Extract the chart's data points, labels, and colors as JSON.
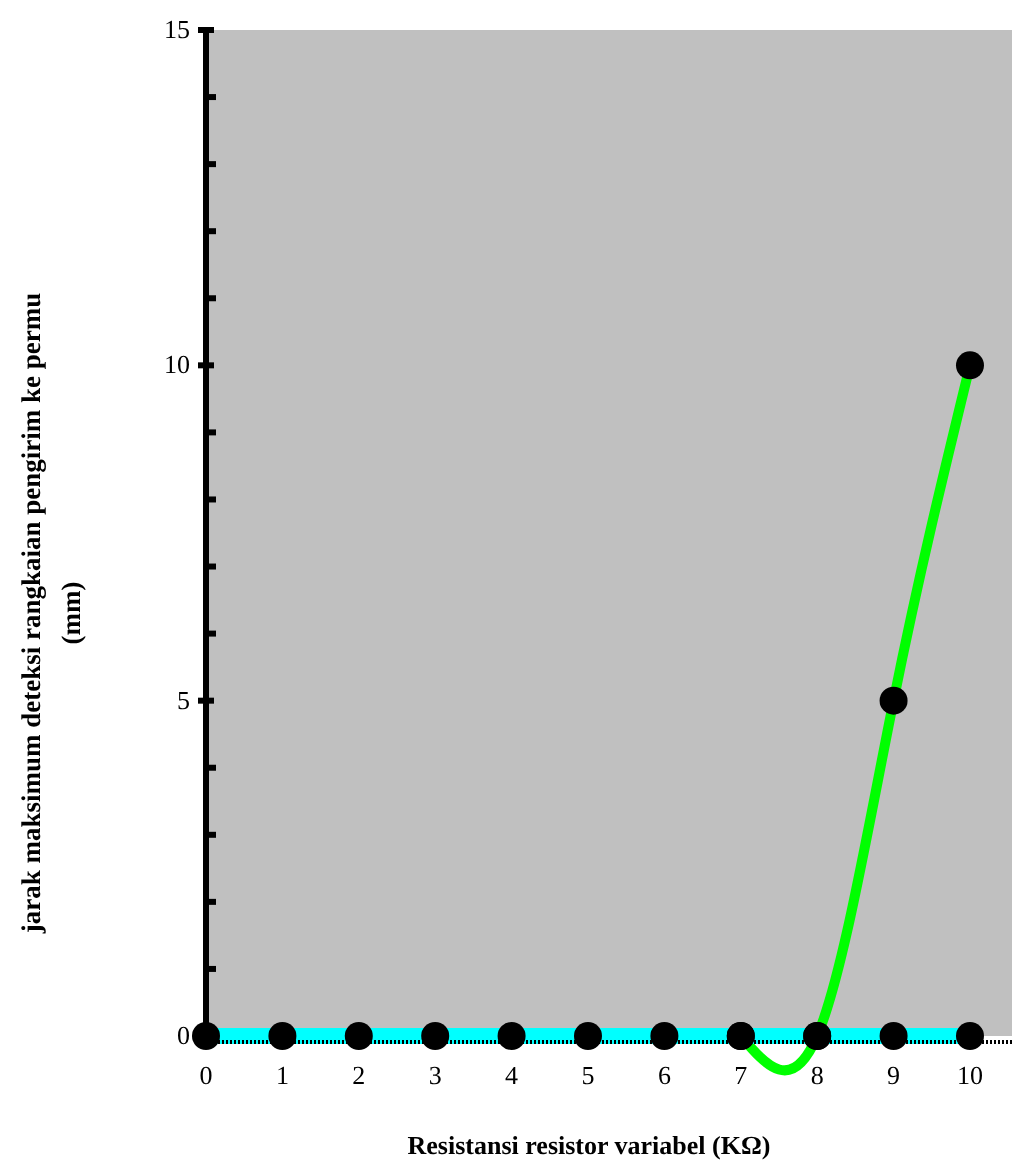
{
  "chart_data": {
    "type": "line",
    "xlabel": "Resistansi resistor variabel (KΩ)",
    "ylabel": "jarak maksimum deteksi rangkaian pengirim ke permu\n(mm)",
    "x": [
      0,
      1,
      2,
      3,
      4,
      5,
      6,
      7,
      8,
      9,
      10
    ],
    "series": [
      {
        "color": "#00ff00",
        "values": [
          null,
          null,
          null,
          null,
          null,
          null,
          null,
          0,
          0,
          5,
          10
        ]
      },
      {
        "color": "#00ffff",
        "values": [
          0,
          0,
          0,
          0,
          0,
          0,
          0,
          0,
          0,
          0,
          0
        ]
      }
    ],
    "xlim": [
      0,
      10.55
    ],
    "ylim": [
      0,
      15
    ],
    "xticks": [
      0,
      1,
      2,
      3,
      4,
      5,
      6,
      7,
      8,
      9,
      10
    ],
    "yticks": [
      0,
      {
        "value": 1,
        "label": null
      },
      {
        "value": 2,
        "label": null
      },
      {
        "value": 3,
        "label": null
      },
      {
        "value": 4,
        "label": null
      },
      5,
      {
        "value": 6,
        "label": null
      },
      {
        "value": 7,
        "label": null
      },
      {
        "value": 8,
        "label": null
      },
      {
        "value": 9,
        "label": null
      },
      10,
      {
        "value": 11,
        "label": null
      },
      {
        "value": 12,
        "label": null
      },
      {
        "value": 13,
        "label": null
      },
      {
        "value": 14,
        "label": null
      },
      15
    ],
    "grid": false,
    "marker": "circle",
    "line_style": "solid"
  }
}
